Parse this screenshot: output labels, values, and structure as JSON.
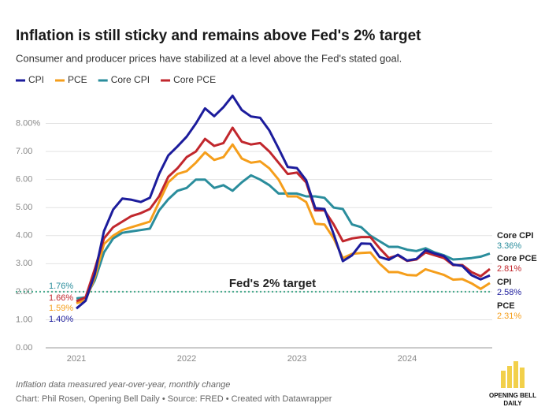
{
  "chart_data": {
    "type": "line",
    "title": "Inflation is still sticky and remains above Fed's 2% target",
    "subtitle": "Consumer and producer prices have stabilized at a level above the Fed's stated goal.",
    "note": "Inflation data measured year-over-year, monthly change",
    "credit": "Chart: Phil Rosen, Opening Bell Daily • Source: FRED • Created with Datawrapper",
    "logo": [
      "OPENING BELL",
      "DAILY"
    ],
    "categories": [
      "2021",
      null,
      null,
      null,
      null,
      null,
      null,
      null,
      null,
      null,
      null,
      null,
      "2022",
      null,
      null,
      null,
      null,
      null,
      null,
      null,
      null,
      null,
      null,
      null,
      "2023",
      null,
      null,
      null,
      null,
      null,
      null,
      null,
      null,
      null,
      null,
      null,
      "2024",
      null,
      null,
      null,
      null,
      null,
      null,
      null,
      null,
      null
    ],
    "ylim": [
      0,
      9
    ],
    "yticks": [
      {
        "value": 0,
        "label": "0.00"
      },
      {
        "value": 1,
        "label": "1.00"
      },
      {
        "value": 2,
        "label": "2.00"
      },
      {
        "value": 3,
        "label": "3.00"
      },
      {
        "value": 4,
        "label": "4.00"
      },
      {
        "value": 5,
        "label": "5.00"
      },
      {
        "value": 6,
        "label": "6.00"
      },
      {
        "value": 7,
        "label": "7.00"
      },
      {
        "value": 8,
        "label": "8.00%"
      }
    ],
    "grid": true,
    "legend": "top-left",
    "target": {
      "value": 2,
      "label": "Fed's 2% target",
      "color": "#4aab8f"
    },
    "series": [
      {
        "name": "CPI",
        "color": "#1c1c9c",
        "values": [
          1.4,
          1.68,
          2.62,
          4.16,
          4.93,
          5.32,
          5.28,
          5.2,
          5.35,
          6.2,
          6.86,
          7.18,
          7.53,
          8.0,
          8.54,
          8.26,
          8.58,
          8.99,
          8.48,
          8.25,
          8.2,
          7.75,
          7.11,
          6.45,
          6.41,
          5.98,
          4.98,
          4.95,
          4.05,
          3.09,
          3.3,
          3.72,
          3.71,
          3.24,
          3.14,
          3.32,
          3.11,
          3.17,
          3.48,
          3.36,
          3.27,
          2.97,
          2.92,
          2.59,
          2.44,
          2.58
        ],
        "value_labels": [
          "1.40%",
          null,
          null,
          null,
          null,
          null,
          null,
          null,
          null,
          null,
          null,
          null,
          null,
          null,
          null,
          null,
          null,
          null,
          null,
          null,
          null,
          null,
          null,
          null,
          null,
          null,
          null,
          null,
          null,
          null,
          null,
          null,
          null,
          null,
          null,
          null,
          null,
          null,
          null,
          null,
          null,
          null,
          null,
          null,
          null,
          "2.58%"
        ]
      },
      {
        "name": "PCE",
        "color": "#f59e1b",
        "values": [
          1.59,
          1.7,
          2.5,
          3.7,
          4.0,
          4.2,
          4.3,
          4.4,
          4.5,
          5.2,
          5.9,
          6.2,
          6.3,
          6.6,
          6.97,
          6.7,
          6.8,
          7.25,
          6.75,
          6.6,
          6.65,
          6.4,
          6.0,
          5.4,
          5.4,
          5.2,
          4.42,
          4.4,
          3.9,
          3.2,
          3.35,
          3.38,
          3.4,
          3.0,
          2.7,
          2.7,
          2.6,
          2.58,
          2.8,
          2.7,
          2.6,
          2.43,
          2.45,
          2.3,
          2.1,
          2.31
        ],
        "value_labels": [
          "1.59%",
          null,
          null,
          null,
          null,
          null,
          null,
          null,
          null,
          null,
          null,
          null,
          null,
          null,
          null,
          null,
          null,
          null,
          null,
          null,
          null,
          null,
          null,
          null,
          null,
          null,
          null,
          null,
          null,
          null,
          null,
          null,
          null,
          null,
          null,
          null,
          null,
          null,
          null,
          null,
          null,
          null,
          null,
          null,
          null,
          "2.31%"
        ]
      },
      {
        "name": "Core CPI",
        "color": "#2a8d9c",
        "values": [
          1.76,
          1.8,
          2.4,
          3.4,
          3.9,
          4.1,
          4.15,
          4.2,
          4.25,
          4.9,
          5.3,
          5.6,
          5.7,
          6.0,
          6.0,
          5.7,
          5.8,
          5.6,
          5.9,
          6.15,
          6.0,
          5.8,
          5.5,
          5.5,
          5.5,
          5.4,
          5.4,
          5.35,
          5.0,
          4.95,
          4.4,
          4.3,
          4.0,
          3.8,
          3.6,
          3.6,
          3.5,
          3.45,
          3.55,
          3.4,
          3.3,
          3.15,
          3.17,
          3.2,
          3.25,
          3.36
        ],
        "value_labels": [
          "1.76%",
          null,
          null,
          null,
          null,
          null,
          null,
          null,
          null,
          null,
          null,
          null,
          null,
          null,
          null,
          null,
          null,
          null,
          null,
          null,
          null,
          null,
          null,
          null,
          null,
          null,
          null,
          null,
          null,
          null,
          null,
          null,
          null,
          null,
          null,
          null,
          null,
          null,
          null,
          null,
          null,
          null,
          null,
          null,
          null,
          "3.36%"
        ]
      },
      {
        "name": "Core PCE",
        "color": "#c1272d",
        "values": [
          1.66,
          1.8,
          2.8,
          3.9,
          4.3,
          4.5,
          4.7,
          4.8,
          4.95,
          5.4,
          6.1,
          6.4,
          6.8,
          7.0,
          7.45,
          7.2,
          7.3,
          7.85,
          7.35,
          7.25,
          7.3,
          7.0,
          6.6,
          6.2,
          6.25,
          5.9,
          4.9,
          4.9,
          4.4,
          3.8,
          3.9,
          3.95,
          3.95,
          3.55,
          3.2,
          3.3,
          3.1,
          3.15,
          3.4,
          3.3,
          3.2,
          2.95,
          2.95,
          2.7,
          2.55,
          2.81
        ],
        "value_labels": [
          "1.66%",
          null,
          null,
          null,
          null,
          null,
          null,
          null,
          null,
          null,
          null,
          null,
          null,
          null,
          null,
          null,
          null,
          null,
          null,
          null,
          null,
          null,
          null,
          null,
          null,
          null,
          null,
          null,
          null,
          null,
          null,
          null,
          null,
          null,
          null,
          null,
          null,
          null,
          null,
          null,
          null,
          null,
          null,
          null,
          null,
          "2.81%"
        ]
      }
    ]
  }
}
